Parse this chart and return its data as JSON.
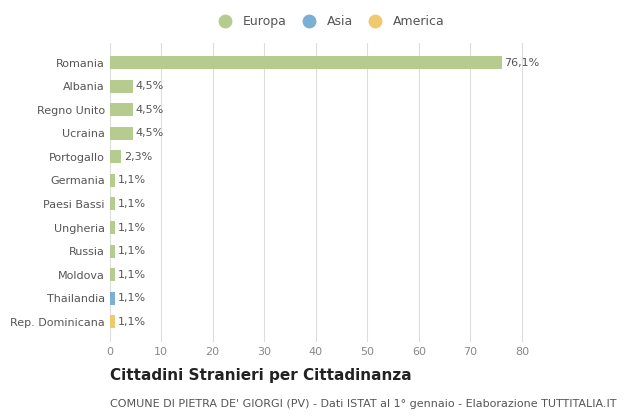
{
  "countries": [
    "Romania",
    "Albania",
    "Regno Unito",
    "Ucraina",
    "Portogallo",
    "Germania",
    "Paesi Bassi",
    "Ungheria",
    "Russia",
    "Moldova",
    "Thailandia",
    "Rep. Dominicana"
  ],
  "values": [
    76.1,
    4.5,
    4.5,
    4.5,
    2.3,
    1.1,
    1.1,
    1.1,
    1.1,
    1.1,
    1.1,
    1.1
  ],
  "labels": [
    "76,1%",
    "4,5%",
    "4,5%",
    "4,5%",
    "2,3%",
    "1,1%",
    "1,1%",
    "1,1%",
    "1,1%",
    "1,1%",
    "1,1%",
    "1,1%"
  ],
  "continents": [
    "Europa",
    "Europa",
    "Europa",
    "Europa",
    "Europa",
    "Europa",
    "Europa",
    "Europa",
    "Europa",
    "Europa",
    "Asia",
    "America"
  ],
  "colors": {
    "Europa": "#b5cc8e",
    "Asia": "#7bafd4",
    "America": "#f0c96e"
  },
  "legend_items": [
    {
      "label": "Europa",
      "color": "#b5cc8e"
    },
    {
      "label": "Asia",
      "color": "#7bafd4"
    },
    {
      "label": "America",
      "color": "#f0c96e"
    }
  ],
  "xlim": [
    0,
    85
  ],
  "xticks": [
    0,
    10,
    20,
    30,
    40,
    50,
    60,
    70,
    80
  ],
  "title": "Cittadini Stranieri per Cittadinanza",
  "subtitle": "COMUNE DI PIETRA DE' GIORGI (PV) - Dati ISTAT al 1° gennaio - Elaborazione TUTTITALIA.IT",
  "bg_color": "#ffffff",
  "grid_color": "#dddddd",
  "bar_height": 0.55,
  "title_fontsize": 11,
  "subtitle_fontsize": 8,
  "label_fontsize": 8,
  "tick_fontsize": 8,
  "legend_fontsize": 9
}
